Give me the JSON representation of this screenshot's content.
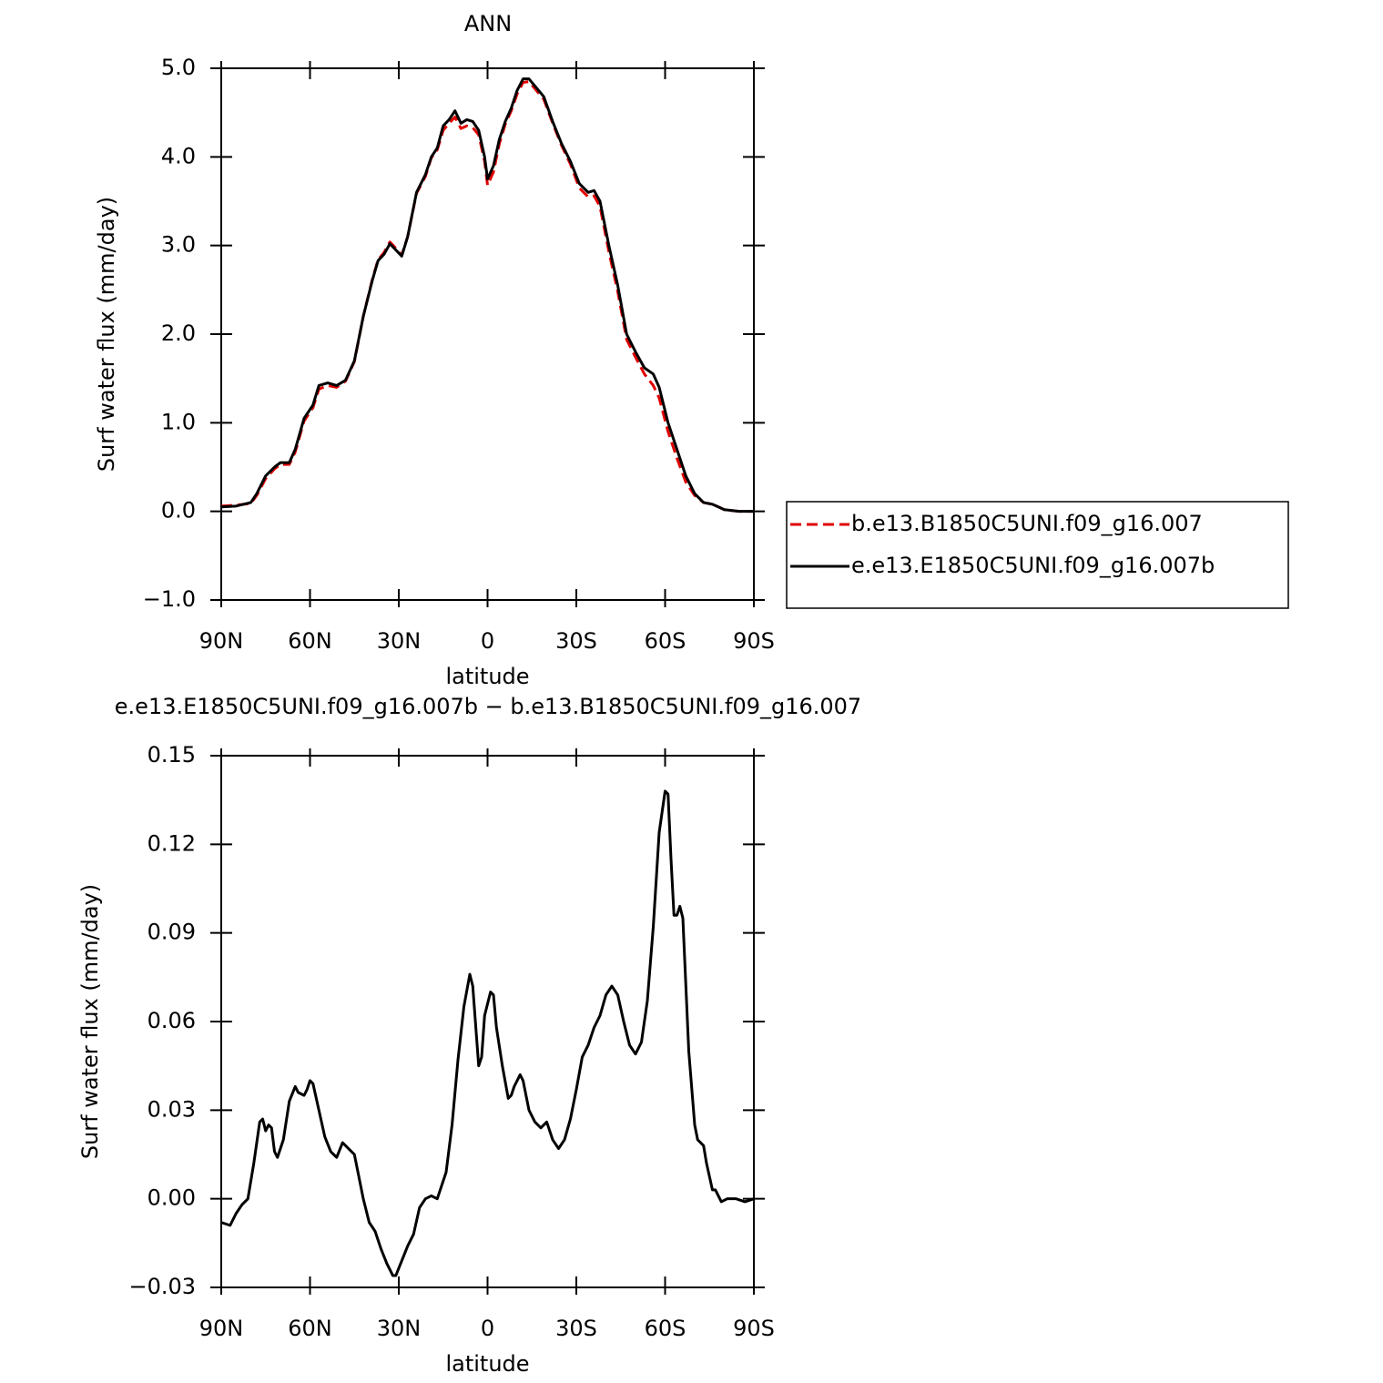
{
  "chart_data": [
    {
      "type": "line",
      "title": "ANN",
      "xlabel": "latitude",
      "ylabel": "Surf water flux (mm/day)",
      "x": [
        90,
        85,
        80,
        78,
        75,
        72,
        70,
        67,
        65,
        62,
        59,
        57,
        54,
        51,
        48,
        45,
        42,
        39,
        37,
        35,
        33,
        31,
        29,
        27,
        24,
        21,
        19,
        17,
        15,
        13,
        11,
        9,
        7,
        5,
        3,
        1,
        0,
        -2,
        -4,
        -6,
        -8,
        -10,
        -12,
        -14,
        -16,
        -19,
        -22,
        -25,
        -28,
        -31,
        -34,
        -36,
        -38,
        -41,
        -44,
        -47,
        -50,
        -53,
        -56,
        -58,
        -61,
        -64,
        -67,
        -70,
        -73,
        -76,
        -78,
        -80,
        -85,
        -90
      ],
      "series": [
        {
          "name": "b.e13.B1850C5UNI.f09_g16.007",
          "color": "#e00000",
          "style": "dashed",
          "values": [
            0.06,
            0.07,
            0.09,
            0.18,
            0.37,
            0.48,
            0.53,
            0.53,
            0.67,
            1.02,
            1.17,
            1.38,
            1.42,
            1.4,
            1.47,
            1.69,
            2.2,
            2.61,
            2.84,
            2.92,
            3.04,
            2.97,
            2.89,
            3.1,
            3.59,
            3.78,
            3.99,
            4.08,
            4.3,
            4.38,
            4.45,
            4.32,
            4.35,
            4.33,
            4.25,
            3.95,
            3.68,
            3.83,
            4.15,
            4.37,
            4.52,
            4.71,
            4.84,
            4.85,
            4.77,
            4.65,
            4.38,
            4.13,
            3.92,
            3.65,
            3.55,
            3.56,
            3.44,
            2.93,
            2.48,
            1.94,
            1.74,
            1.55,
            1.42,
            1.28,
            0.9,
            0.6,
            0.33,
            0.18,
            0.1,
            0.08,
            0.05,
            0.02,
            0.0,
            0.0
          ]
        },
        {
          "name": "e.e13.E1850C5UNI.f09_g16.007b",
          "color": "#000000",
          "style": "solid",
          "values": [
            0.05,
            0.06,
            0.1,
            0.2,
            0.4,
            0.5,
            0.55,
            0.55,
            0.7,
            1.05,
            1.2,
            1.42,
            1.45,
            1.42,
            1.48,
            1.7,
            2.2,
            2.6,
            2.83,
            2.9,
            3.02,
            2.95,
            2.88,
            3.1,
            3.6,
            3.8,
            4.0,
            4.1,
            4.35,
            4.42,
            4.52,
            4.38,
            4.42,
            4.4,
            4.3,
            4.0,
            3.75,
            3.9,
            4.2,
            4.4,
            4.55,
            4.75,
            4.88,
            4.88,
            4.8,
            4.68,
            4.4,
            4.15,
            3.95,
            3.7,
            3.6,
            3.62,
            3.5,
            3.0,
            2.55,
            2.0,
            1.8,
            1.62,
            1.55,
            1.4,
            1.0,
            0.7,
            0.4,
            0.2,
            0.1,
            0.08,
            0.05,
            0.02,
            0.0,
            0.0
          ]
        }
      ],
      "xlim": [
        90,
        -90
      ],
      "xticks": [
        {
          "value": 90,
          "label": "90N"
        },
        {
          "value": 60,
          "label": "60N"
        },
        {
          "value": 30,
          "label": "30N"
        },
        0,
        {
          "value": -30,
          "label": "30S"
        },
        {
          "value": -60,
          "label": "60S"
        },
        {
          "value": -90,
          "label": "90S"
        }
      ],
      "ylim": [
        -1,
        5
      ],
      "yticks": [
        {
          "value": -1,
          "label": "−1.0"
        },
        {
          "value": 0,
          "label": "0.0"
        },
        {
          "value": 1,
          "label": "1.0"
        },
        {
          "value": 2,
          "label": "2.0"
        },
        {
          "value": 3,
          "label": "3.0"
        },
        {
          "value": 4,
          "label": "4.0"
        },
        {
          "value": 5,
          "label": "5.0"
        }
      ],
      "legend": "right"
    },
    {
      "type": "line",
      "title": "e.e13.E1850C5UNI.f09_g16.007b − b.e13.B1850C5UNI.f09_g16.007",
      "xlabel": "latitude",
      "ylabel": "Surf water flux (mm/day)",
      "x": [
        90,
        87,
        85,
        83,
        81,
        79,
        77,
        76,
        75,
        74,
        73,
        72,
        71,
        69,
        67,
        65,
        64,
        62,
        61,
        60,
        59,
        57,
        55,
        53,
        51,
        49,
        47,
        45,
        44,
        42,
        40,
        38,
        36,
        34,
        32,
        31,
        29,
        27,
        25,
        23,
        21,
        19,
        17,
        16,
        14,
        12,
        10,
        8,
        6,
        5,
        3,
        2,
        1,
        -1,
        -2,
        -3,
        -5,
        -7,
        -8,
        -9,
        -11,
        -12,
        -14,
        -16,
        -18,
        -20,
        -22,
        -24,
        -26,
        -28,
        -30,
        -32,
        -34,
        -36,
        -38,
        -40,
        -42,
        -44,
        -46,
        -48,
        -50,
        -52,
        -54,
        -56,
        -58,
        -60,
        -61,
        -62,
        -63,
        -64,
        -65,
        -66,
        -68,
        -70,
        -71,
        -73,
        -74,
        -76,
        -77,
        -79,
        -81,
        -84,
        -87,
        -90
      ],
      "values": [
        -0.008,
        -0.009,
        -0.005,
        -0.002,
        0.0,
        0.012,
        0.026,
        0.027,
        0.023,
        0.025,
        0.024,
        0.016,
        0.014,
        0.02,
        0.033,
        0.038,
        0.036,
        0.035,
        0.037,
        0.04,
        0.039,
        0.03,
        0.021,
        0.016,
        0.014,
        0.019,
        0.017,
        0.015,
        0.01,
        0.0,
        -0.008,
        -0.011,
        -0.017,
        -0.022,
        -0.026,
        -0.026,
        -0.021,
        -0.016,
        -0.012,
        -0.003,
        0.0,
        0.001,
        0.0,
        0.003,
        0.009,
        0.025,
        0.047,
        0.065,
        0.076,
        0.072,
        0.045,
        0.048,
        0.062,
        0.07,
        0.069,
        0.058,
        0.045,
        0.034,
        0.035,
        0.038,
        0.042,
        0.04,
        0.03,
        0.026,
        0.024,
        0.026,
        0.02,
        0.017,
        0.02,
        0.027,
        0.037,
        0.048,
        0.052,
        0.058,
        0.062,
        0.069,
        0.072,
        0.069,
        0.06,
        0.052,
        0.049,
        0.053,
        0.067,
        0.092,
        0.124,
        0.138,
        0.137,
        0.115,
        0.096,
        0.096,
        0.099,
        0.095,
        0.05,
        0.025,
        0.02,
        0.018,
        0.012,
        0.003,
        0.003,
        -0.001,
        0.0,
        0.0,
        -0.001,
        0.0
      ],
      "color": "#000000",
      "xlim": [
        90,
        -90
      ],
      "xticks": [
        {
          "value": 90,
          "label": "90N"
        },
        {
          "value": 60,
          "label": "60N"
        },
        {
          "value": 30,
          "label": "30N"
        },
        0,
        {
          "value": -30,
          "label": "30S"
        },
        {
          "value": -60,
          "label": "60S"
        },
        {
          "value": -90,
          "label": "90S"
        }
      ],
      "ylim": [
        -0.03,
        0.15
      ],
      "yticks": [
        {
          "value": -0.03,
          "label": "−0.03"
        },
        {
          "value": 0,
          "label": "0.00"
        },
        0.03,
        0.06,
        0.09,
        0.12,
        0.15
      ]
    }
  ]
}
